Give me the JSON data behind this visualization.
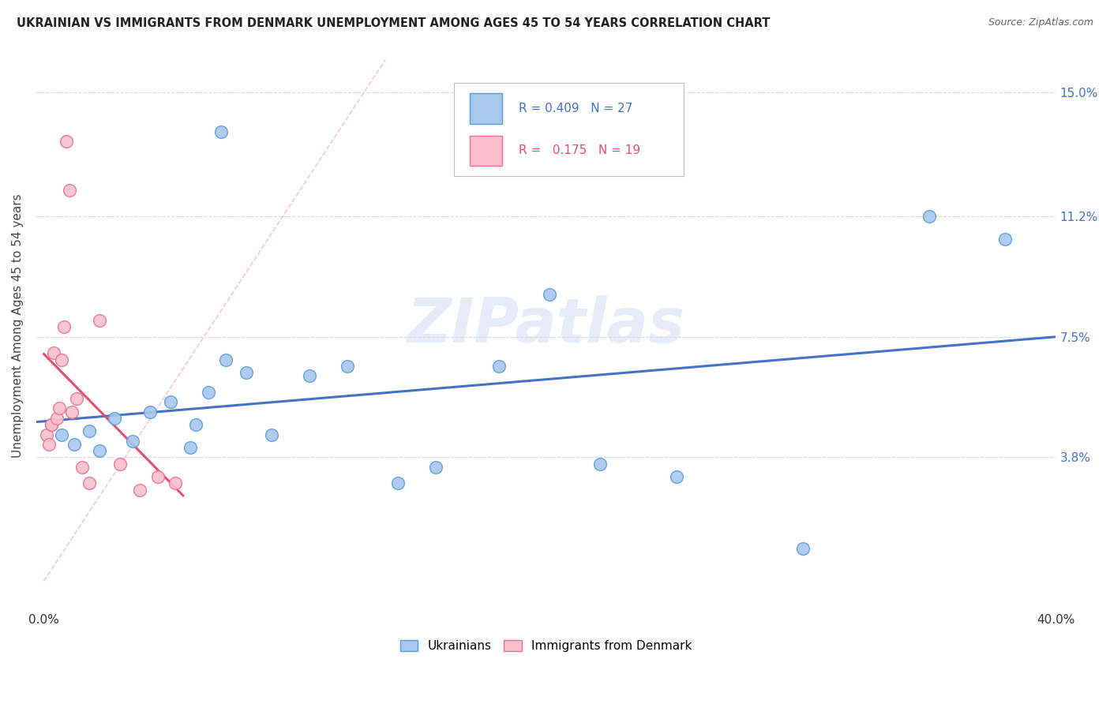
{
  "title": "UKRAINIAN VS IMMIGRANTS FROM DENMARK UNEMPLOYMENT AMONG AGES 45 TO 54 YEARS CORRELATION CHART",
  "source": "Source: ZipAtlas.com",
  "ylabel": "Unemployment Among Ages 45 to 54 years",
  "ytick_labels": [
    "3.8%",
    "7.5%",
    "11.2%",
    "15.0%"
  ],
  "ytick_values": [
    3.8,
    7.5,
    11.2,
    15.0
  ],
  "xlim": [
    -0.3,
    40.0
  ],
  "ylim": [
    -0.8,
    16.5
  ],
  "watermark": "ZIPatlas",
  "legend1_label": "Ukrainians",
  "legend2_label": "Immigrants from Denmark",
  "r1": 0.409,
  "n1": 27,
  "r2": 0.175,
  "n2": 19,
  "color_blue_fill": "#A8C8F0",
  "color_blue_edge": "#5B9BD5",
  "color_pink_fill": "#F8C0CC",
  "color_pink_edge": "#E87090",
  "color_blue_line": "#4472C4",
  "color_pink_line": "#E05070",
  "color_pink_dash": "#F0A0B8",
  "blue_scatter_x": [
    0.3,
    0.7,
    1.2,
    1.8,
    2.2,
    2.8,
    3.5,
    4.2,
    5.0,
    5.8,
    6.5,
    7.2,
    8.0,
    9.0,
    10.5,
    12.0,
    14.0,
    15.5,
    18.0,
    20.0,
    22.0,
    25.0,
    30.0,
    35.0,
    38.0,
    6.0,
    7.0
  ],
  "blue_scatter_y": [
    4.8,
    4.5,
    4.2,
    4.6,
    4.0,
    5.0,
    4.3,
    5.2,
    5.5,
    4.1,
    5.8,
    6.8,
    6.4,
    4.5,
    6.3,
    6.6,
    3.0,
    3.5,
    6.6,
    8.8,
    3.6,
    3.2,
    1.0,
    11.2,
    10.5,
    4.8,
    13.8
  ],
  "pink_scatter_x": [
    0.1,
    0.2,
    0.3,
    0.4,
    0.5,
    0.6,
    0.7,
    0.8,
    0.9,
    1.0,
    1.1,
    1.3,
    1.5,
    1.8,
    2.2,
    3.0,
    3.8,
    4.5,
    5.2
  ],
  "pink_scatter_y": [
    4.5,
    4.2,
    4.8,
    7.0,
    5.0,
    5.3,
    6.8,
    7.8,
    13.5,
    12.0,
    5.2,
    5.6,
    3.5,
    3.0,
    8.0,
    3.6,
    2.8,
    3.2,
    3.0
  ],
  "diag_line_x": [
    0,
    13.5
  ],
  "diag_line_y": [
    0,
    16.0
  ]
}
